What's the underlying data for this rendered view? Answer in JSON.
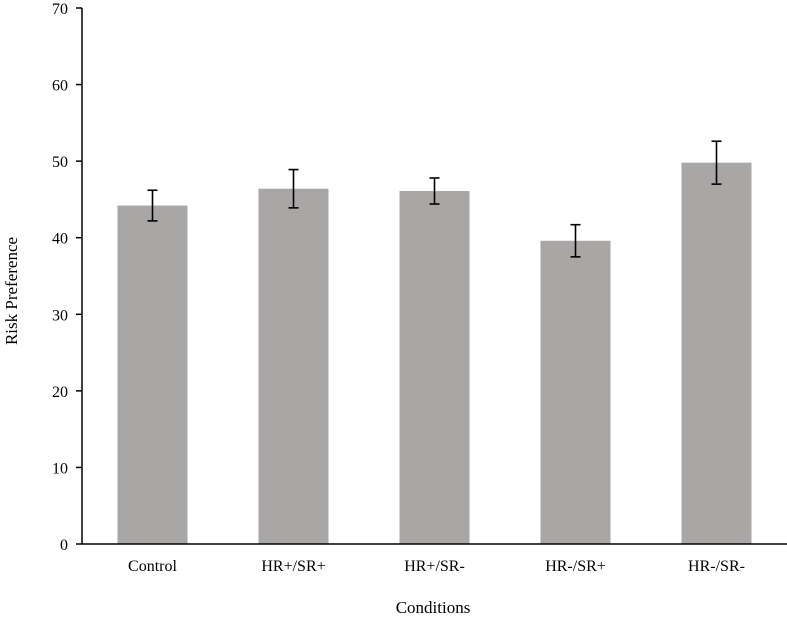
{
  "chart_data": {
    "type": "bar",
    "categories": [
      "Control",
      "HR+/SR+",
      "HR+/SR-",
      "HR-/SR+",
      "HR-/SR-"
    ],
    "values": [
      44.2,
      46.4,
      46.1,
      39.6,
      49.8
    ],
    "error": [
      2.0,
      2.5,
      1.7,
      2.1,
      2.8
    ],
    "xlabel": "Conditions",
    "ylabel": "Risk Preference",
    "ylim": [
      0,
      70
    ],
    "yticks": [
      0,
      10,
      20,
      30,
      40,
      50,
      60,
      70
    ],
    "grid": false,
    "bar_color": "#a9a6a6",
    "errorbar_color": "#000000"
  }
}
